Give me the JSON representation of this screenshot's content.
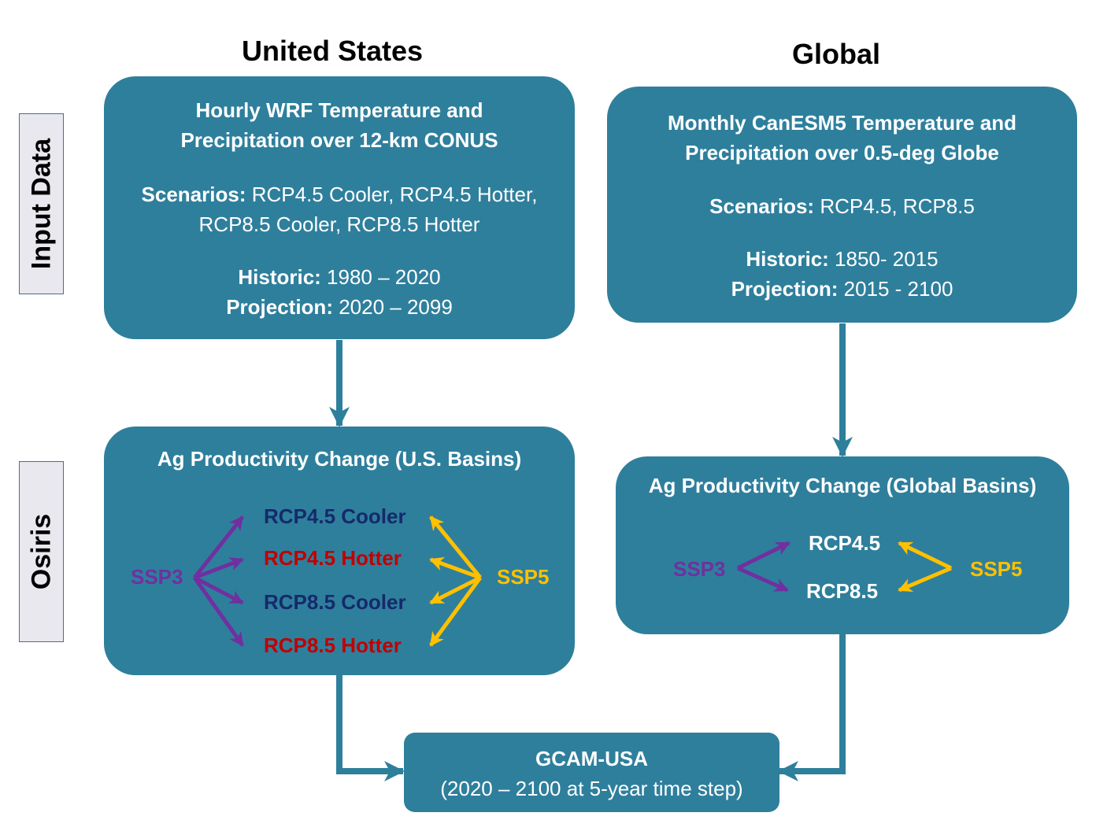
{
  "headings": {
    "us": "United States",
    "global": "Global"
  },
  "row_labels": {
    "input": "Input Data",
    "osiris": "Osiris"
  },
  "us_input": {
    "title_line1": "Hourly WRF Temperature and",
    "title_line2": "Precipitation over 12-km CONUS",
    "scenarios_label": "Scenarios:",
    "scenarios_line1": " RCP4.5 Cooler, RCP4.5 Hotter,",
    "scenarios_line2": "RCP8.5 Cooler, RCP8.5 Hotter",
    "historic_label": "Historic:",
    "historic_value": " 1980 – 2020",
    "projection_label": "Projection:",
    "projection_value": " 2020 – 2099"
  },
  "global_input": {
    "title_line1": "Monthly CanESM5 Temperature and",
    "title_line2": "Precipitation over 0.5-deg Globe",
    "scenarios_label": "Scenarios:",
    "scenarios_value": " RCP4.5, RCP8.5",
    "historic_label": "Historic:",
    "historic_value": " 1850- 2015",
    "projection_label": "Projection:",
    "projection_value": " 2015 - 2100"
  },
  "us_osiris": {
    "title": "Ag Productivity Change (U.S. Basins)",
    "ssp_left": "SSP3",
    "ssp_right": "SSP5",
    "scenarios": [
      "RCP4.5 Cooler",
      "RCP4.5 Hotter",
      "RCP8.5 Cooler",
      "RCP8.5 Hotter"
    ]
  },
  "global_osiris": {
    "title": "Ag Productivity Change (Global Basins)",
    "ssp_left": "SSP3",
    "ssp_right": "SSP5",
    "scenarios": [
      "RCP4.5",
      "RCP8.5"
    ]
  },
  "gcam": {
    "title": "GCAM-USA",
    "subtitle": "(2020 – 2100 at 5-year time step)"
  },
  "colors": {
    "box_fill": "#2e7f9c",
    "ssp3": "#7030a0",
    "ssp5": "#ffc000",
    "cooler": "#152a6b",
    "hotter": "#c00000"
  }
}
